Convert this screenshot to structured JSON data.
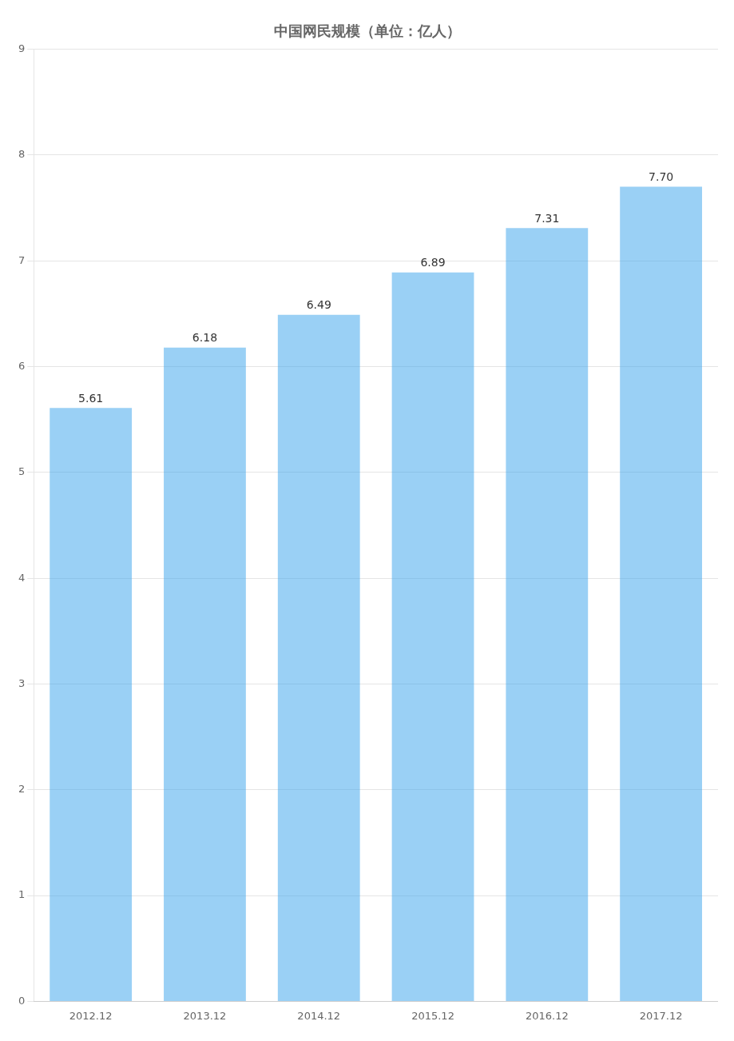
{
  "chart_data": {
    "type": "bar",
    "title": "中国网民规模（单位：亿人）",
    "categories": [
      "2012.12",
      "2013.12",
      "2014.12",
      "2015.12",
      "2016.12",
      "2017.12"
    ],
    "values": [
      5.61,
      6.18,
      6.49,
      6.89,
      7.31,
      7.7
    ],
    "value_labels": [
      "5.61",
      "6.18",
      "6.49",
      "6.89",
      "7.31",
      "7.70"
    ],
    "data_labels": true,
    "ylim": [
      0,
      9
    ],
    "yticks": [
      0,
      1,
      2,
      3,
      4,
      5,
      6,
      7,
      8,
      9
    ],
    "grid": true
  }
}
